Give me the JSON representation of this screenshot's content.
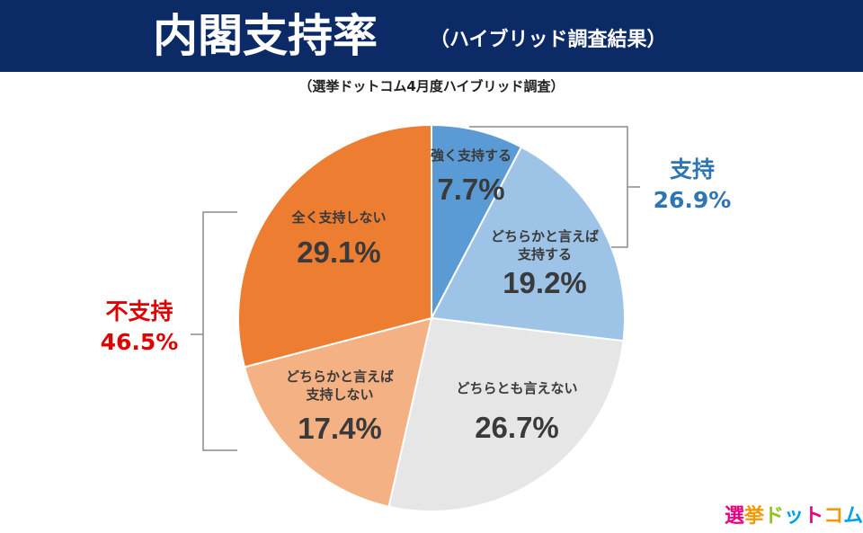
{
  "header": {
    "title": "内閣支持率",
    "subtitle": "（ハイブリッド調査結果）"
  },
  "caption": "（選挙ドットコム4月度ハイブリッド調査）",
  "chart_data": {
    "type": "pie",
    "title": "内閣支持率",
    "start_angle": "12 o'clock, clockwise",
    "slices": [
      {
        "label": "強く支持する",
        "value": 7.7,
        "value_label": "7.7%",
        "color": "#5b9bd5"
      },
      {
        "label": "どちらかと言えば\n支持する",
        "value": 19.2,
        "value_label": "19.2%",
        "color": "#9dc3e6"
      },
      {
        "label": "どちらとも言えない",
        "value": 26.7,
        "value_label": "26.7%",
        "color": "#e7e6e6"
      },
      {
        "label": "どちらかと言えば\n支持しない",
        "value": 17.4,
        "value_label": "17.4%",
        "color": "#f4b183"
      },
      {
        "label": "全く支持しない",
        "value": 29.1,
        "value_label": "29.1%",
        "color": "#ed7d31"
      }
    ],
    "groups": [
      {
        "label": "支持",
        "value_label": "26.9%",
        "color": "#2e75b6"
      },
      {
        "label": "不支持",
        "value_label": "46.5%",
        "color": "#e00000"
      }
    ]
  },
  "logo": {
    "text": "選挙ドットコム",
    "colors": [
      "#e6007e",
      "#f39800",
      "#8fc31f",
      "#00a0e9",
      "#e6007e",
      "#f39800",
      "#00a0e9"
    ]
  }
}
